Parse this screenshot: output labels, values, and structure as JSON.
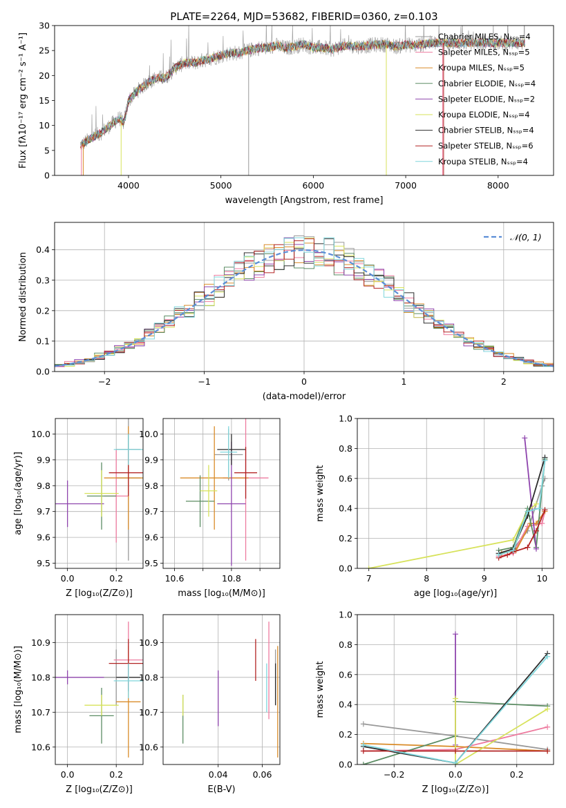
{
  "figure": {
    "title": "PLATE=2264, MJD=53682, FIBERID=0360, z=0.103"
  },
  "colors": [
    "#999999",
    "#ee7b9f",
    "#d98b28",
    "#5b8c63",
    "#8e44ad",
    "#d7e25a",
    "#2b2b2b",
    "#b22222",
    "#7fd6dc"
  ],
  "chart_data": [
    {
      "id": "spectrum",
      "type": "line",
      "xlabel": "wavelength [Angstrom, rest frame]",
      "ylabel": "Flux [fλ10⁻¹⁷ erg cm⁻² s⁻¹ A⁻¹]",
      "xlim": [
        3200,
        8600
      ],
      "ylim": [
        0,
        30
      ],
      "xticks": [
        4000,
        5000,
        6000,
        7000,
        8000
      ],
      "yticks": [
        0,
        5,
        10,
        15,
        20,
        25,
        30
      ],
      "grid": false,
      "legend_position": "top-right",
      "continuum": {
        "x": [
          3480,
          3600,
          3700,
          3800,
          3900,
          3950,
          4000,
          4100,
          4200,
          4300,
          4400,
          4500,
          4600,
          4700,
          4800,
          4900,
          5000,
          5100,
          5200,
          5300,
          5400,
          5500,
          5600,
          5700,
          5800,
          5900,
          6000,
          6100,
          6200,
          6300,
          6400,
          6500,
          6600,
          6700,
          6800,
          6900,
          7000,
          7100,
          7200,
          7300,
          7400,
          7600,
          7800,
          8000,
          8200,
          8290
        ],
        "y": [
          6,
          7.5,
          8.5,
          10,
          11.5,
          10.5,
          15,
          17,
          18.5,
          19.5,
          19.5,
          21.5,
          22.5,
          22.5,
          23,
          23.5,
          24,
          24.5,
          24.5,
          25,
          25.5,
          25.5,
          26,
          25.5,
          25.8,
          26.3,
          25.5,
          25.6,
          25.2,
          25.8,
          26,
          25.8,
          26,
          26.2,
          26.2,
          25.8,
          26.2,
          26,
          26.3,
          26.5,
          26.5,
          26.5,
          26.6,
          26.5,
          26.6,
          26.5
        ]
      },
      "series": [
        {
          "name": "Chabrier MILES, N_SSP=4"
        },
        {
          "name": "Salpeter MILES, N_SSP=5"
        },
        {
          "name": "Kroupa MILES, N_SSP=5"
        },
        {
          "name": "Chabrier ELODIE, N_SSP=4"
        },
        {
          "name": "Salpeter ELODIE, N_SSP=2"
        },
        {
          "name": "Kroupa ELODIE, N_SSP=4"
        },
        {
          "name": "Chabrier STELIB, N_SSP=4"
        },
        {
          "name": "Salpeter STELIB, N_SSP=6"
        },
        {
          "name": "Kroupa STELIB, N_SSP=4"
        }
      ]
    },
    {
      "id": "residuals",
      "type": "line",
      "xlabel": "(data-model)/error",
      "ylabel": "Normed distribution",
      "xlim": [
        -2.5,
        2.5
      ],
      "ylim": [
        0,
        0.49
      ],
      "xticks": [
        -2,
        -1,
        0,
        1,
        2
      ],
      "yticks": [
        0.0,
        0.1,
        0.2,
        0.3,
        0.4
      ],
      "ytick_labels": [
        "0.0",
        "0.1",
        "0.2",
        "0.3",
        "0.4"
      ],
      "grid": true,
      "legend_position": "top-right",
      "bins": 50,
      "reference": {
        "name": "𝒩(0, 1)",
        "color": "#5b8dd6"
      }
    },
    {
      "id": "age_vs_Z",
      "type": "scatter",
      "xlabel": "Z [log₁₀(Z/Z⊙)]",
      "ylabel": "age  [log₁₀(age/yr)]",
      "xlim": [
        -0.05,
        0.31
      ],
      "ylim": [
        9.48,
        10.06
      ],
      "xticks": [
        0.0,
        0.2
      ],
      "xtick_labels": [
        "0.0",
        "0.2"
      ],
      "yticks": [
        9.5,
        9.6,
        9.7,
        9.8,
        9.9,
        10.0
      ],
      "ytick_labels": [
        "9.5",
        "9.6",
        "9.7",
        "9.8",
        "9.9",
        "10.0"
      ],
      "grid": true,
      "points": [
        {
          "x": 0.25,
          "xerr": 0.05,
          "y": 9.83,
          "yerr": 0.32
        },
        {
          "x": 0.2,
          "xerr": 0.05,
          "y": 9.76,
          "yerr": 0.18
        },
        {
          "x": 0.25,
          "xerr": 0.1,
          "y": 9.83,
          "yerr": 0.2
        },
        {
          "x": 0.14,
          "xerr": 0.06,
          "y": 9.76,
          "yerr": 0.13
        },
        {
          "x": 0.0,
          "xerr": 0.15,
          "y": 9.73,
          "yerr": 0.09
        },
        {
          "x": 0.14,
          "xerr": 0.07,
          "y": 9.77,
          "yerr": 0.09
        },
        {
          "x": 0.25,
          "xerr": 0.05,
          "y": 9.94,
          "yerr": 0.06
        },
        {
          "x": 0.25,
          "xerr": 0.08,
          "y": 9.85,
          "yerr": 0.09
        },
        {
          "x": 0.25,
          "xerr": 0.06,
          "y": 9.94,
          "yerr": 0.06
        }
      ]
    },
    {
      "id": "age_vs_mass",
      "type": "scatter",
      "xlabel": "mass [log₁₀(M/M⊙)]",
      "ylabel": "",
      "xlim": [
        10.56,
        10.97
      ],
      "ylim": [
        9.48,
        10.06
      ],
      "xticks": [
        10.6,
        10.7,
        10.8,
        10.9
      ],
      "xtick_labels": [
        "10.6",
        "",
        "10.8",
        ""
      ],
      "yticks": [
        9.5,
        9.6,
        9.7,
        9.8,
        9.9,
        10.0
      ],
      "ytick_labels": [
        "9.5",
        "9.6",
        "9.7",
        "9.8",
        "9.9",
        "10.0"
      ],
      "grid": true,
      "points": [
        {
          "x": 10.79,
          "xerr": 0.05,
          "y": 9.92,
          "yerr": 0.1
        },
        {
          "x": 10.85,
          "xerr": 0.08,
          "y": 9.83,
          "yerr": 0.32
        },
        {
          "x": 10.74,
          "xerr": 0.12,
          "y": 9.83,
          "yerr": 0.2
        },
        {
          "x": 10.69,
          "xerr": 0.05,
          "y": 9.74,
          "yerr": 0.1
        },
        {
          "x": 10.8,
          "xerr": 0.05,
          "y": 9.73,
          "yerr": 0.24
        },
        {
          "x": 10.72,
          "xerr": 0.03,
          "y": 9.78,
          "yerr": 0.1
        },
        {
          "x": 10.8,
          "xerr": 0.05,
          "y": 9.94,
          "yerr": 0.06
        },
        {
          "x": 10.85,
          "xerr": 0.04,
          "y": 9.85,
          "yerr": 0.1
        },
        {
          "x": 10.79,
          "xerr": 0.03,
          "y": 9.93,
          "yerr": 0.1
        }
      ]
    },
    {
      "id": "weight_vs_age",
      "type": "line",
      "xlabel": "age  [log₁₀(age/yr)]",
      "ylabel": "mass weight",
      "xlim": [
        6.8,
        10.2
      ],
      "ylim": [
        0,
        1
      ],
      "xticks": [
        7,
        8,
        9,
        10
      ],
      "yticks": [
        0.0,
        0.2,
        0.4,
        0.6,
        0.8,
        1.0
      ],
      "ytick_labels": [
        "0.0",
        "0.2",
        "0.4",
        "0.6",
        "0.8",
        "1.0"
      ],
      "grid": true,
      "series": [
        {
          "x": [
            9.25,
            9.5,
            9.75,
            10.0,
            10.05
          ],
          "y": [
            0.1,
            0.13,
            0.25,
            0.55,
            0.6
          ]
        },
        {
          "x": [
            9.25,
            9.5,
            9.75,
            10.0,
            10.05
          ],
          "y": [
            0.08,
            0.1,
            0.28,
            0.3,
            0.38
          ]
        },
        {
          "x": [
            9.3,
            9.55,
            9.8,
            9.9,
            10.05
          ],
          "y": [
            0.1,
            0.12,
            0.3,
            0.3,
            0.38
          ]
        },
        {
          "x": [
            9.25,
            9.5,
            9.75,
            9.9,
            10.05
          ],
          "y": [
            0.12,
            0.14,
            0.4,
            0.14,
            0.73
          ]
        },
        {
          "x": [
            9.7,
            9.9
          ],
          "y": [
            0.87,
            0.13
          ]
        },
        {
          "x": [
            7.0,
            9.5,
            9.75,
            9.9
          ],
          "y": [
            0.0,
            0.19,
            0.38,
            0.43
          ]
        },
        {
          "x": [
            9.25,
            9.5,
            9.75,
            10.05
          ],
          "y": [
            0.1,
            0.13,
            0.35,
            0.74
          ]
        },
        {
          "x": [
            9.25,
            9.4,
            9.5,
            9.75,
            9.9,
            10.05
          ],
          "y": [
            0.07,
            0.09,
            0.11,
            0.14,
            0.25,
            0.39
          ]
        },
        {
          "x": [
            9.25,
            9.5,
            9.75,
            9.95,
            10.05
          ],
          "y": [
            0.09,
            0.12,
            0.38,
            0.4,
            0.72
          ]
        }
      ]
    },
    {
      "id": "mass_vs_Z",
      "type": "scatter",
      "xlabel": "Z [log₁₀(Z/Z⊙)]",
      "ylabel": "mass [log₁₀(M/M⊙)]",
      "xlim": [
        -0.05,
        0.31
      ],
      "ylim": [
        10.55,
        10.98
      ],
      "xticks": [
        0.0,
        0.2
      ],
      "xtick_labels": [
        "0.0",
        "0.2"
      ],
      "yticks": [
        10.6,
        10.7,
        10.8,
        10.9
      ],
      "ytick_labels": [
        "10.6",
        "10.7",
        "10.8",
        "10.9"
      ],
      "grid": true,
      "points": [
        {
          "x": 0.2,
          "xerr": 0.05,
          "y": 10.8,
          "yerr": 0.08
        },
        {
          "x": 0.25,
          "xerr": 0.06,
          "y": 10.85,
          "yerr": 0.11
        },
        {
          "x": 0.25,
          "xerr": 0.05,
          "y": 10.73,
          "yerr": 0.16
        },
        {
          "x": 0.14,
          "xerr": 0.05,
          "y": 10.69,
          "yerr": 0.08
        },
        {
          "x": 0.0,
          "xerr": 0.15,
          "y": 10.8,
          "yerr": 0.02
        },
        {
          "x": 0.14,
          "xerr": 0.07,
          "y": 10.72,
          "yerr": 0.03
        },
        {
          "x": 0.25,
          "xerr": 0.05,
          "y": 10.8,
          "yerr": 0.04
        },
        {
          "x": 0.25,
          "xerr": 0.08,
          "y": 10.84,
          "yerr": 0.07
        },
        {
          "x": 0.25,
          "xerr": 0.06,
          "y": 10.79,
          "yerr": 0.05
        }
      ]
    },
    {
      "id": "mass_vs_ebv",
      "type": "scatter",
      "xlabel": "E(B-V)",
      "ylabel": "",
      "xlim": [
        0.015,
        0.068
      ],
      "ylim": [
        10.55,
        10.98
      ],
      "xticks": [
        0.04,
        0.06
      ],
      "xtick_labels": [
        "0.04",
        "0.06"
      ],
      "yticks": [
        10.6,
        10.7,
        10.8,
        10.9
      ],
      "ytick_labels": [
        "10.6",
        "10.7",
        "10.8",
        "10.9"
      ],
      "grid": true,
      "points": [
        {
          "x": 0.066,
          "y": 10.8,
          "yerr": 0.08
        },
        {
          "x": 0.063,
          "y": 10.82,
          "yerr": 0.14
        },
        {
          "x": 0.067,
          "y": 10.73,
          "yerr": 0.16
        },
        {
          "x": 0.024,
          "y": 10.68,
          "yerr": 0.07
        },
        {
          "x": 0.04,
          "y": 10.74,
          "yerr": 0.08
        },
        {
          "x": 0.024,
          "y": 10.72,
          "yerr": 0.03
        },
        {
          "x": 0.066,
          "y": 10.78,
          "yerr": 0.06
        },
        {
          "x": 0.057,
          "y": 10.85,
          "yerr": 0.06
        },
        {
          "x": 0.062,
          "y": 10.77,
          "yerr": 0.07
        }
      ]
    },
    {
      "id": "weight_vs_Z",
      "type": "line",
      "xlabel": "Z [log₁₀(Z/Z⊙)]",
      "ylabel": "mass weight",
      "xlim": [
        -0.32,
        0.32
      ],
      "ylim": [
        0,
        1
      ],
      "xticks": [
        -0.2,
        0.0,
        0.2
      ],
      "xtick_labels": [
        "−0.2",
        "0.0",
        "0.2"
      ],
      "yticks": [
        0.0,
        0.2,
        0.4,
        0.6,
        0.8,
        1.0
      ],
      "ytick_labels": [
        "0.0",
        "0.2",
        "0.4",
        "0.6",
        "0.8",
        "1.0"
      ],
      "grid": true,
      "series": [
        {
          "x": [
            -0.3,
            0.0,
            0.3
          ],
          "y": [
            0.27,
            0.19,
            0.1
          ]
        },
        {
          "x": [
            -0.3,
            0.0,
            0.3
          ],
          "y": [
            0.09,
            0.1,
            0.25
          ]
        },
        {
          "x": [
            -0.3,
            0.0,
            0.3
          ],
          "y": [
            0.14,
            0.12,
            0.09
          ]
        },
        {
          "x": [
            -0.3,
            0.0,
            0.0,
            0.3
          ],
          "y": [
            0.0,
            0.19,
            0.42,
            0.39
          ]
        },
        {
          "x": [
            0.0,
            0.0
          ],
          "y": [
            0.87,
            0.13
          ]
        },
        {
          "x": [
            0.0,
            0.0,
            0.3
          ],
          "y": [
            0.44,
            0.0,
            0.37
          ]
        },
        {
          "x": [
            -0.3,
            0.0,
            0.3
          ],
          "y": [
            0.12,
            0.01,
            0.74
          ]
        },
        {
          "x": [
            -0.3,
            0.0,
            0.3
          ],
          "y": [
            0.09,
            0.09,
            0.09
          ]
        },
        {
          "x": [
            -0.3,
            0.0,
            0.3
          ],
          "y": [
            0.13,
            0.01,
            0.72
          ]
        }
      ]
    }
  ]
}
